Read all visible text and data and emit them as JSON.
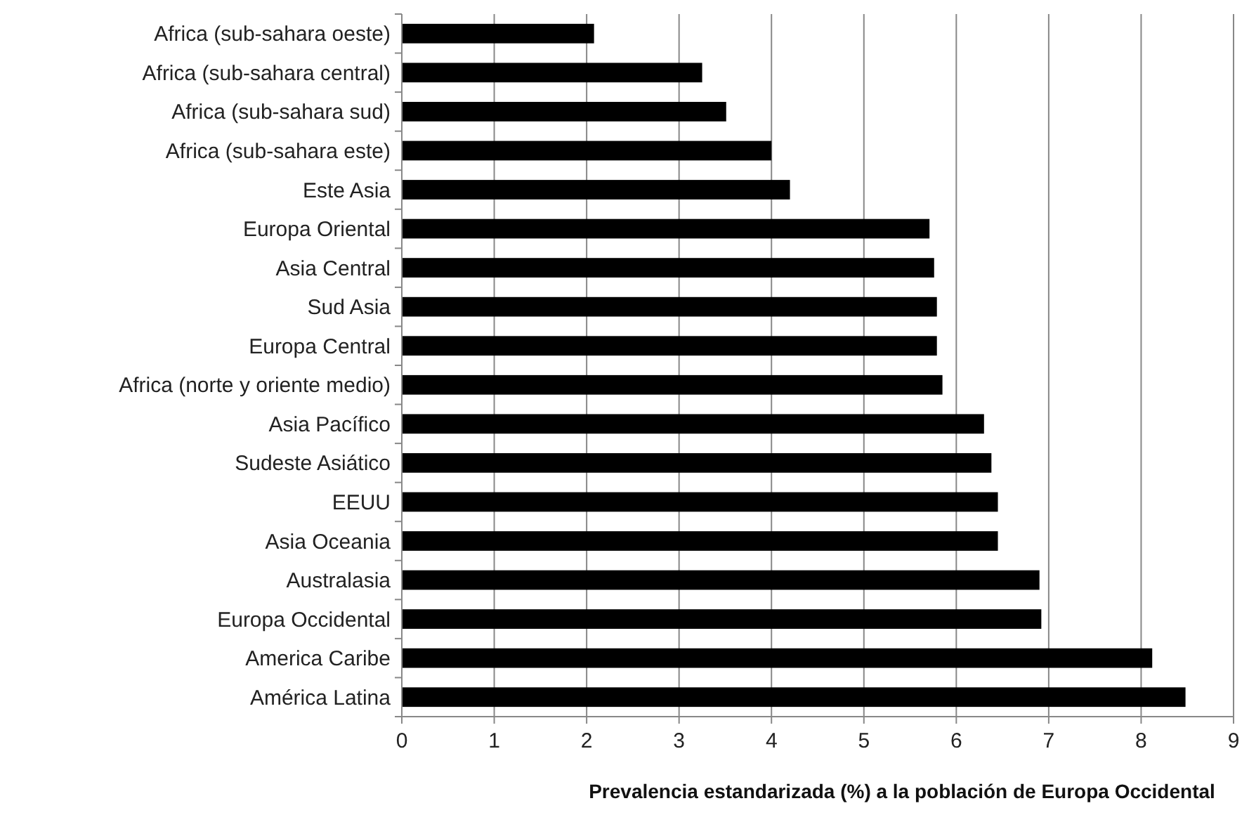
{
  "chart_data": {
    "type": "bar",
    "orientation": "horizontal",
    "xlabel": "Prevalencia estandarizada (%) a  la población de Europa Occidental",
    "categories": [
      "Africa (sub-sahara oeste)",
      "Africa (sub-sahara central)",
      "Africa (sub-sahara sud)",
      "Africa (sub-sahara este)",
      "Este Asia",
      "Europa Oriental",
      "Asia Central",
      "Sud Asia",
      "Europa Central",
      "Africa (norte y oriente medio)",
      "Asia Pacífico",
      "Sudeste Asiático",
      "EEUU",
      "Asia Oceania",
      "Australasia",
      "Europa Occidental",
      "America Caribe",
      "América Latina"
    ],
    "values": [
      2.08,
      3.25,
      3.51,
      4.0,
      4.2,
      5.71,
      5.76,
      5.79,
      5.79,
      5.85,
      6.3,
      6.38,
      6.45,
      6.45,
      6.9,
      6.92,
      8.12,
      8.48
    ],
    "color": "#000000",
    "xlim": [
      0,
      9
    ],
    "xticks": [
      0,
      1,
      2,
      3,
      4,
      5,
      6,
      7,
      8,
      9
    ],
    "grid": "x"
  }
}
